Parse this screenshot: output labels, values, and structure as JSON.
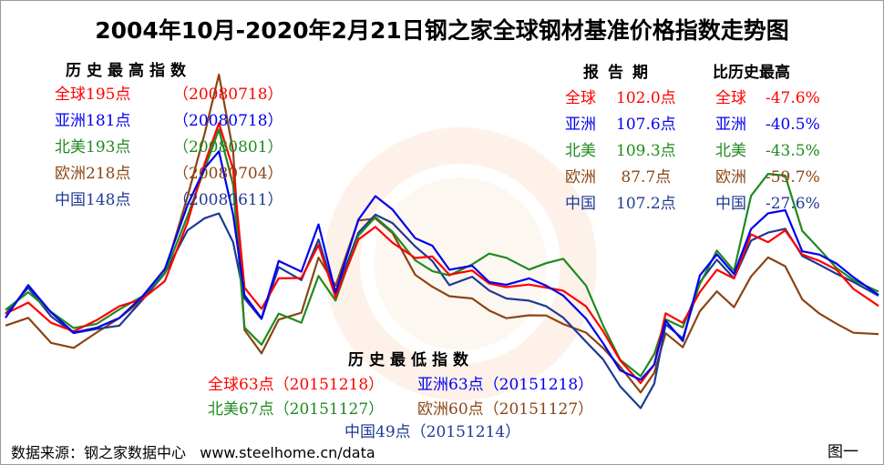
{
  "colors": {
    "global": "#ff0000",
    "asia": "#0000ee",
    "namerica": "#1f8a1f",
    "europe": "#8b4513",
    "china": "#1f3a93"
  },
  "chart_data": {
    "type": "line",
    "title": "2004年10月-2020年2月21日钢之家全球钢材基准价格指数走势图",
    "xlabel": "",
    "ylabel": "",
    "x_range": [
      "2004-10",
      "2020-02-21"
    ],
    "ylim": [
      40,
      230
    ],
    "grid": false,
    "x": [
      2004.8,
      2005.2,
      2005.6,
      2006.0,
      2006.4,
      2006.8,
      2007.2,
      2007.6,
      2008.0,
      2008.3,
      2008.55,
      2008.8,
      2009.0,
      2009.3,
      2009.6,
      2010.0,
      2010.3,
      2010.6,
      2011.0,
      2011.3,
      2011.6,
      2012.0,
      2012.3,
      2012.6,
      2013.0,
      2013.3,
      2013.6,
      2014.0,
      2014.3,
      2014.6,
      2015.0,
      2015.3,
      2015.6,
      2015.96,
      2016.2,
      2016.4,
      2016.7,
      2017.0,
      2017.3,
      2017.6,
      2017.9,
      2018.2,
      2018.5,
      2018.8,
      2019.1,
      2019.4,
      2019.7,
      2020.14
    ],
    "series": [
      {
        "name": "全球",
        "values": [
          98,
          104,
          95,
          90,
          93,
          100,
          106,
          116,
          145,
          175,
          195,
          170,
          110,
          102,
          118,
          116,
          132,
          106,
          135,
          142,
          136,
          128,
          126,
          116,
          120,
          114,
          112,
          114,
          112,
          108,
          100,
          90,
          76,
          63,
          72,
          98,
          92,
          108,
          122,
          118,
          138,
          133,
          140,
          128,
          125,
          122,
          112,
          102
        ]
      },
      {
        "name": "亚洲",
        "values": [
          96,
          112,
          97,
          88,
          91,
          96,
          108,
          122,
          152,
          170,
          181,
          150,
          108,
          96,
          125,
          118,
          142,
          110,
          148,
          158,
          150,
          136,
          132,
          120,
          124,
          116,
          112,
          114,
          112,
          108,
          96,
          84,
          70,
          63,
          70,
          95,
          86,
          118,
          128,
          118,
          140,
          148,
          152,
          132,
          128,
          122,
          116,
          107.6
        ]
      },
      {
        "name": "北美",
        "values": [
          100,
          108,
          98,
          92,
          95,
          100,
          105,
          118,
          148,
          172,
          193,
          165,
          90,
          80,
          98,
          95,
          118,
          105,
          138,
          146,
          138,
          126,
          122,
          118,
          122,
          128,
          126,
          120,
          125,
          128,
          112,
          90,
          74,
          67,
          78,
          96,
          92,
          112,
          128,
          120,
          160,
          170,
          168,
          140,
          130,
          120,
          116,
          109.3
        ]
      },
      {
        "name": "欧洲",
        "values": [
          92,
          98,
          84,
          80,
          88,
          95,
          104,
          120,
          160,
          190,
          218,
          180,
          90,
          78,
          96,
          100,
          126,
          110,
          145,
          148,
          140,
          118,
          112,
          106,
          104,
          100,
          98,
          98,
          96,
          92,
          88,
          80,
          72,
          60,
          68,
          86,
          80,
          100,
          110,
          102,
          118,
          126,
          120,
          105,
          100,
          94,
          88,
          87.7
        ]
      },
      {
        "name": "中国",
        "values": [
          98,
          112,
          96,
          86,
          90,
          94,
          106,
          118,
          140,
          146,
          148,
          135,
          108,
          96,
          120,
          114,
          136,
          108,
          140,
          150,
          144,
          130,
          124,
          114,
          118,
          110,
          106,
          104,
          100,
          96,
          86,
          76,
          60,
          49,
          62,
          92,
          86,
          116,
          126,
          114,
          134,
          140,
          142,
          128,
          124,
          118,
          112,
          107.2
        ]
      }
    ],
    "annotations": {
      "historical_high": {
        "header": "历史最高指数",
        "items": [
          {
            "label": "全球195点",
            "date": "（20080718）"
          },
          {
            "label": "亚洲181点",
            "date": "（20080718）"
          },
          {
            "label": "北美193点",
            "date": "（20080801）"
          },
          {
            "label": "欧洲218点",
            "date": "（20080704）"
          },
          {
            "label": "中国148点",
            "date": "（20080611）"
          }
        ]
      },
      "report_period": {
        "header_period": "报告期",
        "header_cmp": "比历史最高",
        "items": [
          {
            "region": "全球",
            "value": "102.0点",
            "pct": "-47.6%"
          },
          {
            "region": "亚洲",
            "value": "107.6点",
            "pct": "-40.5%"
          },
          {
            "region": "北美",
            "value": "109.3点",
            "pct": "-43.5%"
          },
          {
            "region": "欧洲",
            "value": " 87.7点",
            "pct": "-59.7%"
          },
          {
            "region": "中国",
            "value": "107.2点",
            "pct": "-27.6%"
          }
        ]
      },
      "historical_low": {
        "header": "历史最低指数",
        "items": [
          {
            "text": "全球63点（20151218）"
          },
          {
            "text": "亚洲63点（20151218）"
          },
          {
            "text": "北美67点（20151127）"
          },
          {
            "text": "欧洲60点（20151127）"
          },
          {
            "text": "中国49点（20151214）"
          }
        ]
      }
    }
  },
  "footer": {
    "source": "数据来源：钢之家数据中心   www.steelhome.cn/data",
    "figure_label": "图一"
  }
}
